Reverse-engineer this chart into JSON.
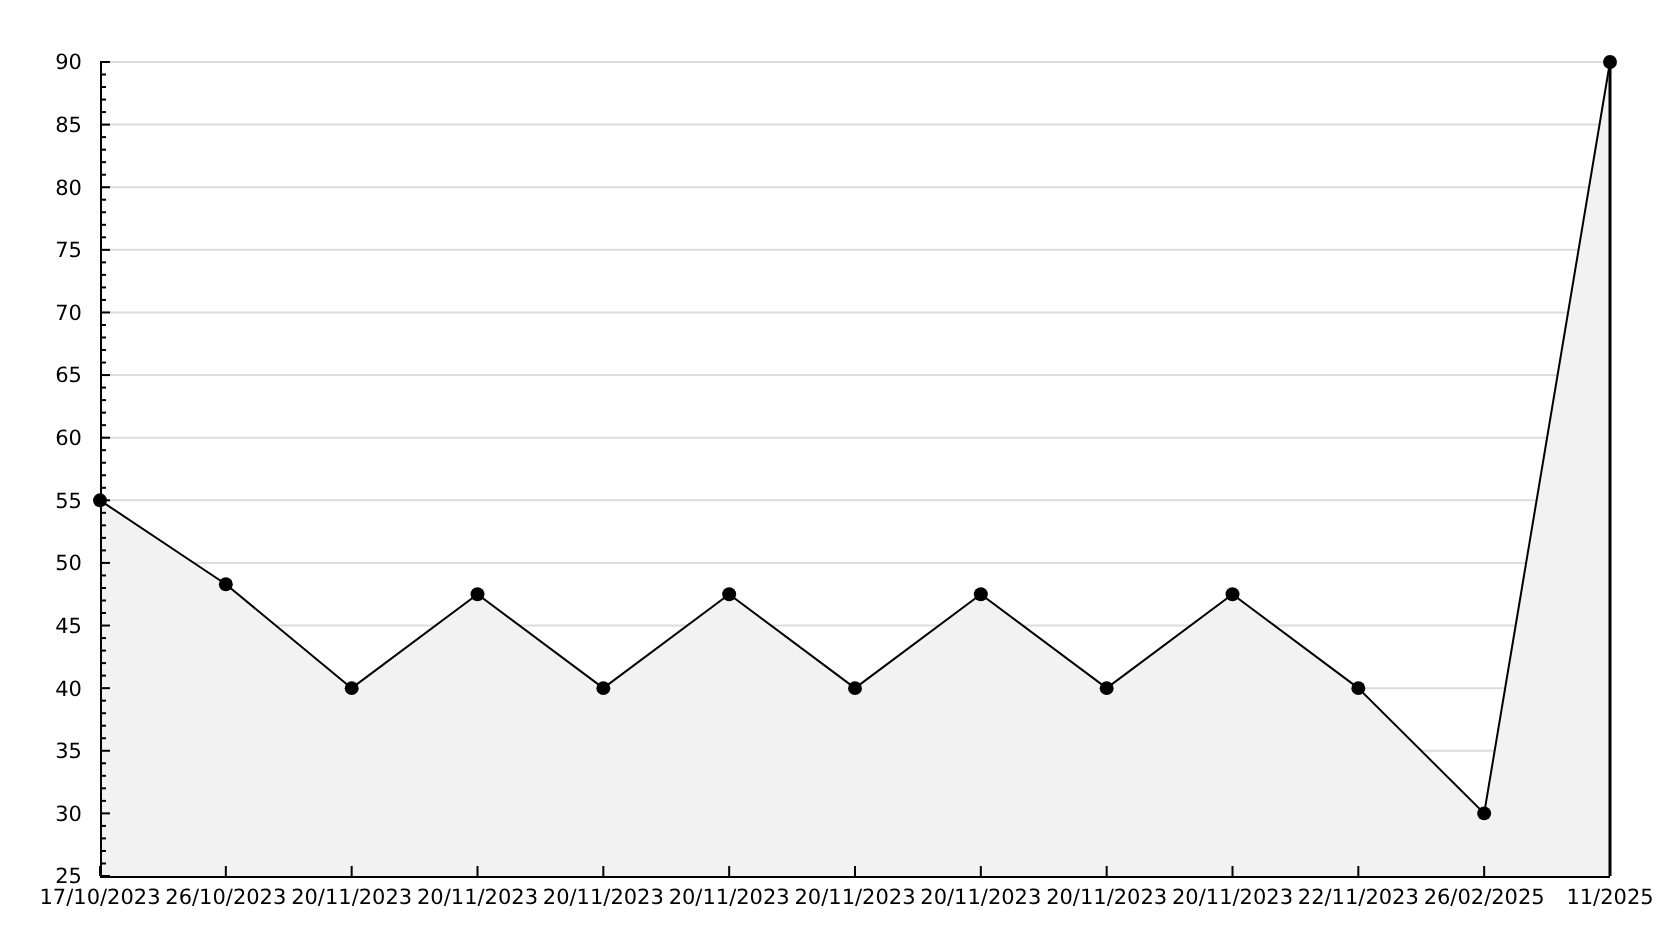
{
  "chart_data": {
    "type": "area",
    "categories": [
      "17/10/2023",
      "26/10/2023",
      "20/11/2023",
      "20/11/2023",
      "20/11/2023",
      "20/11/2023",
      "20/11/2023",
      "20/11/2023",
      "20/11/2023",
      "20/11/2023",
      "22/11/2023",
      "26/02/2025",
      "11/2025"
    ],
    "series": [
      {
        "color": "#000000",
        "values": [
          55,
          48.3,
          40,
          47.5,
          40,
          47.5,
          40,
          47.5,
          40,
          47.5,
          40,
          30,
          90
        ]
      }
    ],
    "ylim": [
      25,
      90
    ],
    "yticks": [
      25,
      {
        "value": 26,
        "label": null
      },
      {
        "value": 27,
        "label": null
      },
      {
        "value": 28,
        "label": null
      },
      {
        "value": 29,
        "label": null
      },
      30,
      {
        "value": 31,
        "label": null
      },
      {
        "value": 32,
        "label": null
      },
      {
        "value": 33,
        "label": null
      },
      {
        "value": 34,
        "label": null
      },
      35,
      {
        "value": 36,
        "label": null
      },
      {
        "value": 37,
        "label": null
      },
      {
        "value": 38,
        "label": null
      },
      {
        "value": 39,
        "label": null
      },
      40,
      {
        "value": 41,
        "label": null
      },
      {
        "value": 42,
        "label": null
      },
      {
        "value": 43,
        "label": null
      },
      {
        "value": 44,
        "label": null
      },
      45,
      {
        "value": 46,
        "label": null
      },
      {
        "value": 47,
        "label": null
      },
      {
        "value": 48,
        "label": null
      },
      {
        "value": 49,
        "label": null
      },
      50,
      {
        "value": 51,
        "label": null
      },
      {
        "value": 52,
        "label": null
      },
      {
        "value": 53,
        "label": null
      },
      {
        "value": 54,
        "label": null
      },
      55,
      {
        "value": 56,
        "label": null
      },
      {
        "value": 57,
        "label": null
      },
      {
        "value": 58,
        "label": null
      },
      {
        "value": 59,
        "label": null
      },
      60,
      {
        "value": 61,
        "label": null
      },
      {
        "value": 62,
        "label": null
      },
      {
        "value": 63,
        "label": null
      },
      {
        "value": 64,
        "label": null
      },
      65,
      {
        "value": 66,
        "label": null
      },
      {
        "value": 67,
        "label": null
      },
      {
        "value": 68,
        "label": null
      },
      {
        "value": 69,
        "label": null
      },
      70,
      {
        "value": 71,
        "label": null
      },
      {
        "value": 72,
        "label": null
      },
      {
        "value": 73,
        "label": null
      },
      {
        "value": 74,
        "label": null
      },
      75,
      {
        "value": 76,
        "label": null
      },
      {
        "value": 77,
        "label": null
      },
      {
        "value": 78,
        "label": null
      },
      {
        "value": 79,
        "label": null
      },
      80,
      {
        "value": 81,
        "label": null
      },
      {
        "value": 82,
        "label": null
      },
      {
        "value": 83,
        "label": null
      },
      {
        "value": 84,
        "label": null
      },
      85,
      {
        "value": 86,
        "label": null
      },
      {
        "value": 87,
        "label": null
      },
      {
        "value": 88,
        "label": null
      },
      {
        "value": 89,
        "label": null
      },
      90
    ],
    "grid": "y",
    "marker": "circle"
  }
}
